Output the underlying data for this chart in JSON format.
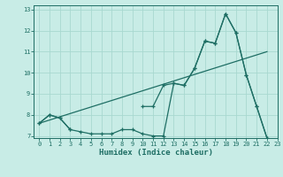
{
  "title": "",
  "xlabel": "Humidex (Indice chaleur)",
  "xlim": [
    -0.5,
    23
  ],
  "ylim": [
    6.9,
    13.2
  ],
  "yticks": [
    7,
    8,
    9,
    10,
    11,
    12,
    13
  ],
  "xticks": [
    0,
    1,
    2,
    3,
    4,
    5,
    6,
    7,
    8,
    9,
    10,
    11,
    12,
    13,
    14,
    15,
    16,
    17,
    18,
    19,
    20,
    21,
    22,
    23
  ],
  "background_color": "#c8ece6",
  "grid_color": "#a8d8d0",
  "line_color": "#1e6e64",
  "series_main": {
    "x": [
      0,
      1,
      2,
      3,
      4,
      5,
      6,
      7,
      8,
      9,
      10,
      11,
      12,
      13,
      14,
      15,
      16,
      17,
      18,
      19,
      20,
      21,
      22
    ],
    "y": [
      7.6,
      8.0,
      7.85,
      7.3,
      7.2,
      7.1,
      7.1,
      7.1,
      7.3,
      7.3,
      7.1,
      7.0,
      7.0,
      9.5,
      9.4,
      10.2,
      11.5,
      11.4,
      12.8,
      11.9,
      9.9,
      8.4,
      6.9
    ]
  },
  "series_upper": {
    "x": [
      0,
      1,
      2,
      3,
      10,
      11,
      12,
      13,
      14,
      15,
      16,
      17,
      18,
      19,
      20,
      21,
      22
    ],
    "y": [
      7.6,
      8.0,
      7.85,
      7.3,
      8.4,
      8.4,
      9.4,
      9.5,
      9.4,
      10.2,
      11.5,
      11.4,
      12.8,
      11.9,
      9.9,
      8.4,
      6.9
    ]
  },
  "series_linear": {
    "x": [
      0,
      22
    ],
    "y": [
      7.6,
      11.0
    ]
  }
}
